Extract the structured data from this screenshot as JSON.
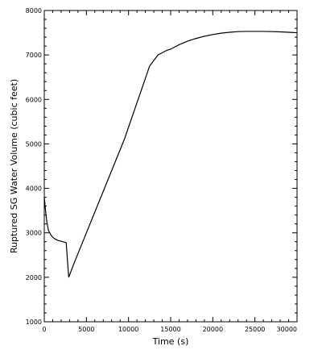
{
  "chart_data": {
    "type": "line",
    "title": "",
    "xlabel": "Time   (s)",
    "ylabel": "Ruptured SG Water Volume (cubic feet)",
    "xlim": [
      0,
      30000
    ],
    "ylim": [
      1000,
      8000
    ],
    "x_ticks": [
      0,
      5000,
      10000,
      15000,
      20000,
      25000,
      30000
    ],
    "x_tick_labels": [
      "0",
      "5000",
      "10000",
      "15000",
      "20000",
      "25000",
      "30000"
    ],
    "y_ticks": [
      1000,
      2000,
      3000,
      4000,
      5000,
      6000,
      7000,
      8000
    ],
    "y_tick_labels": [
      "1000",
      "2000",
      "3000",
      "4000",
      "5000",
      "6000",
      "7000",
      "8000"
    ],
    "grid": false,
    "series": [
      {
        "x": [
          0,
          150,
          300,
          500,
          800,
          1000,
          1300,
          1600,
          2000,
          2400,
          2600,
          2900,
          3500,
          5000,
          6500,
          8000,
          9500,
          10500,
          11500,
          12500,
          13500,
          14000,
          14500,
          15000,
          16000,
          17000,
          18000,
          19000,
          20000,
          21000,
          22000,
          23000,
          24000,
          25000,
          26000,
          27000,
          28000,
          29000,
          30000
        ],
        "y": [
          3800,
          3500,
          3250,
          3050,
          2950,
          2900,
          2860,
          2830,
          2810,
          2790,
          2780,
          2000,
          2300,
          3000,
          3700,
          4400,
          5100,
          5650,
          6200,
          6750,
          7000,
          7050,
          7100,
          7130,
          7230,
          7310,
          7370,
          7420,
          7460,
          7490,
          7510,
          7525,
          7530,
          7530,
          7530,
          7525,
          7520,
          7510,
          7500
        ],
        "color": "#000000"
      }
    ]
  }
}
